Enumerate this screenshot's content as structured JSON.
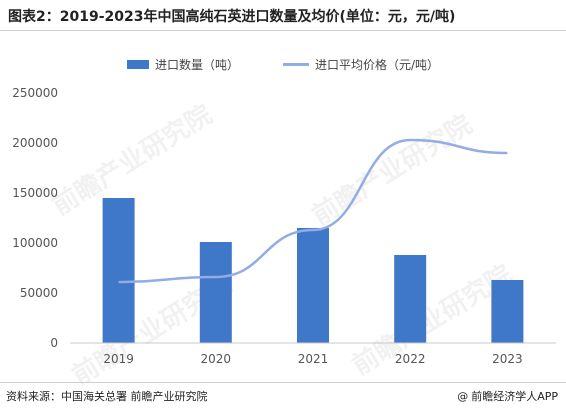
{
  "title": "图表2：2019-2023年中国高纯石英进口数量及均价(单位：元，元/吨)",
  "footer": {
    "source": "资料来源：中国海关总署 前瞻产业研究院",
    "copyright_symbol": "@",
    "brand": "前瞻经济学人APP"
  },
  "colors": {
    "bar": "#3f77c9",
    "line": "#92ace4",
    "axis": "#c8c8c8",
    "tick_text": "#555555"
  },
  "chart_data": {
    "type": "bar",
    "categories": [
      "2019",
      "2020",
      "2021",
      "2022",
      "2023"
    ],
    "series": [
      {
        "name": "进口数量（吨）",
        "type": "bar",
        "values": [
          145000,
          101000,
          115000,
          88000,
          63000
        ]
      },
      {
        "name": "进口平均价格（元/吨）",
        "type": "line",
        "values": [
          61000,
          66000,
          113000,
          203000,
          190000
        ]
      }
    ],
    "yticks": [
      "0",
      "50000",
      "100000",
      "150000",
      "200000",
      "250000"
    ],
    "ylim": [
      0,
      250000
    ],
    "legend": "top-center",
    "grid": false
  }
}
